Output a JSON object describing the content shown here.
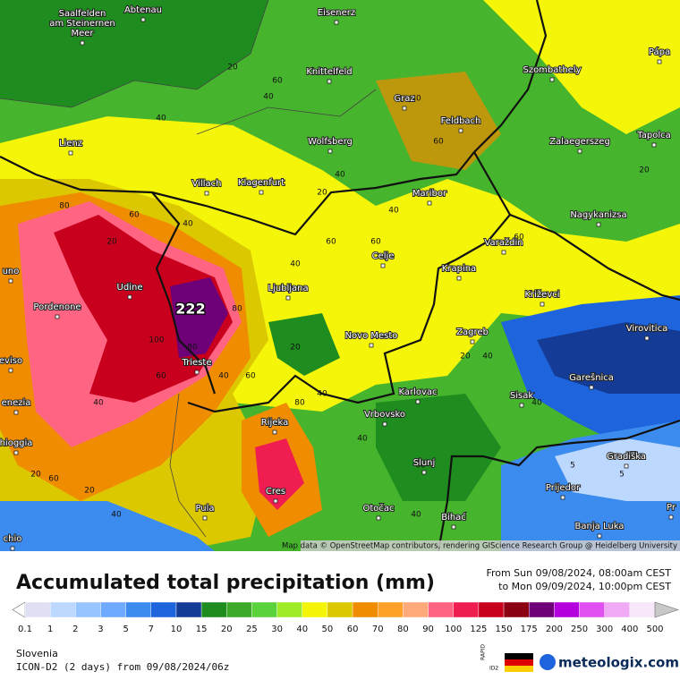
{
  "map": {
    "cities": [
      [
        "Saalfelden",
        "am Steinernen",
        "Meer"
      ],
      [
        "Abtenau"
      ],
      [
        "Eisenerz"
      ],
      [
        "Knittelfeld"
      ],
      [
        "Graz"
      ],
      [
        "Szombathely"
      ],
      [
        "Pápa"
      ],
      [
        "Feldbach"
      ],
      [
        "Lienz"
      ],
      [
        "Wolfsberg"
      ],
      [
        "Zalaegerszeg"
      ],
      [
        "Tapolca"
      ],
      [
        "Villach"
      ],
      [
        "Klagenfurt"
      ],
      [
        "Maribor"
      ],
      [
        "Nagykanizsa"
      ],
      [
        "Varaždin"
      ],
      [
        "Celje"
      ],
      [
        "Krapina"
      ],
      [
        "Udine"
      ],
      [
        "Ljubljana"
      ],
      [
        "Križevci"
      ],
      [
        "Pordenone"
      ],
      [
        "Virovitica"
      ],
      [
        "Novo Mesto"
      ],
      [
        "Zagreb"
      ],
      [
        "Trieste"
      ],
      [
        "eviso"
      ],
      [
        "Karlovac"
      ],
      [
        "Garešnica"
      ],
      [
        "enezia"
      ],
      [
        "Sisak"
      ],
      [
        "Rijeka"
      ],
      [
        "Vrbovsko"
      ],
      [
        "hioggia"
      ],
      [
        "Gradiška"
      ],
      [
        "Slunj"
      ],
      [
        "Prijedor"
      ],
      [
        "Cres"
      ],
      [
        "Pula"
      ],
      [
        "Otočac"
      ],
      [
        "Bihać"
      ],
      [
        "Banja Luka"
      ],
      [
        "chio"
      ],
      [
        "uno"
      ],
      [
        "Pr"
      ]
    ],
    "max_label": "222",
    "contour_labels": [
      "20",
      "40",
      "60",
      "40",
      "40",
      "60",
      "40",
      "20",
      "40",
      "60",
      "80",
      "60",
      "40",
      "20",
      "40",
      "60",
      "80",
      "100",
      "80",
      "60",
      "40",
      "20",
      "40",
      "60",
      "40",
      "20",
      "40",
      "60",
      "20",
      "40",
      "5",
      "5",
      "40",
      "60",
      "20",
      "40",
      "60",
      "80",
      "40",
      "20"
    ],
    "attribution": "Map data © OpenStreetMap contributors, rendering GIScience Research Group @ Heidelberg University"
  },
  "header": {
    "title": "Accumulated total precipitation (mm)",
    "from": "From Sun 09/08/2024, 08:00am CEST",
    "to": "to Mon 09/09/2024, 10:00pm CEST"
  },
  "legend": {
    "ticks": [
      0.1,
      1,
      2,
      3,
      5,
      7,
      10,
      15,
      20,
      25,
      30,
      40,
      50,
      60,
      70,
      80,
      90,
      100,
      125,
      150,
      175,
      200,
      250,
      300,
      400,
      500
    ],
    "colors": [
      "#e0e0f5",
      "#bcd8ff",
      "#96c4ff",
      "#6eaaff",
      "#3c8cf0",
      "#1e64dc",
      "#143c96",
      "#1e8c1e",
      "#3caa28",
      "#5ad23c",
      "#a0eb28",
      "#f5f50a",
      "#dcc800",
      "#f08c00",
      "#ffa028",
      "#ffaa78",
      "#ff6482",
      "#f01e50",
      "#c8001e",
      "#8c0014",
      "#6e0078",
      "#b400dc",
      "#e150f0",
      "#f0aaf5",
      "#f8e6fa"
    ],
    "under_color": "#ffffff",
    "over_color": "#c8c8c8"
  },
  "footer": {
    "region": "Slovenia",
    "model": "ICON-D2 (2 days) from 09/08/2024/06z",
    "badge": "RAPID",
    "badge_sub": "ID2",
    "brand": "meteologix.com"
  }
}
